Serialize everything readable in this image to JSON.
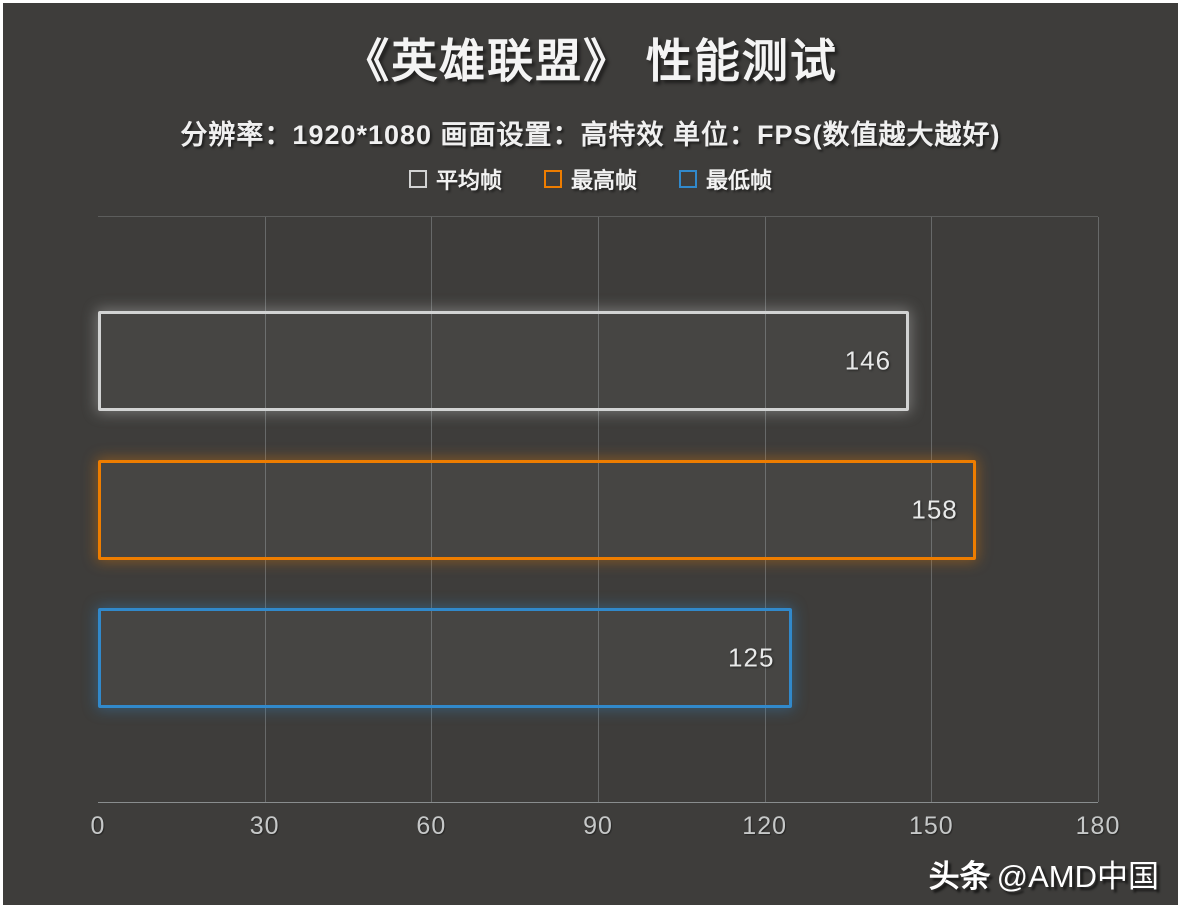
{
  "frame": {
    "border_color": "#ffffff",
    "background": "#3e3d3b"
  },
  "header": {
    "title": "《英雄联盟》 性能测试",
    "subtitle": "分辨率：1920*1080 画面设置：高特效 单位：FPS(数值越大越好)"
  },
  "legend": {
    "items": [
      {
        "label": "平均帧",
        "color": "#d2d3d3"
      },
      {
        "label": "最高帧",
        "color": "#ee7d00"
      },
      {
        "label": "最低帧",
        "color": "#3189cb"
      }
    ]
  },
  "chart_data": {
    "type": "bar",
    "orientation": "horizontal",
    "title": "《英雄联盟》 性能测试",
    "subtitle": "分辨率：1920*1080 画面设置：高特效 单位：FPS(数值越大越好)",
    "unit": "FPS",
    "series": [
      {
        "name": "平均帧",
        "value": 146,
        "color": "#d2d3d3"
      },
      {
        "name": "最高帧",
        "value": 158,
        "color": "#ee7d00"
      },
      {
        "name": "最低帧",
        "value": 125,
        "color": "#3189cb"
      }
    ],
    "xlim": [
      0,
      180
    ],
    "xticks": [
      0,
      30,
      60,
      90,
      120,
      150,
      180
    ],
    "grid": true,
    "legend_position": "top",
    "value_label_position": "inside-right",
    "bar_style": "outline-only"
  },
  "watermark": {
    "brand": "头条",
    "handle": "@AMD中国"
  }
}
